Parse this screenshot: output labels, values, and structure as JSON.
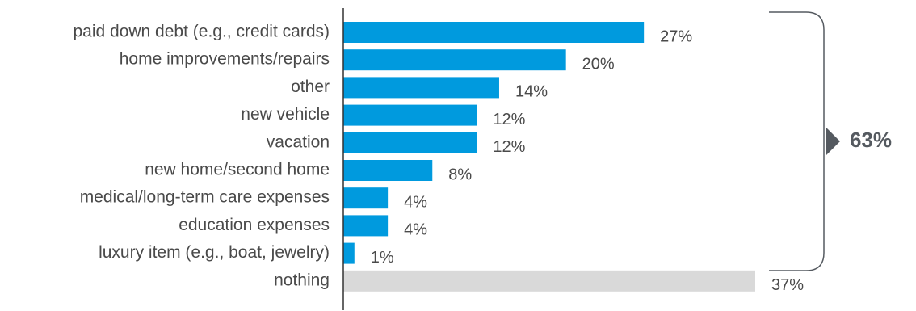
{
  "chart_data": {
    "type": "bar",
    "orientation": "horizontal",
    "categories": [
      "paid down debt (e.g., credit cards)",
      "home improvements/repairs",
      "other",
      "new vehicle",
      "vacation",
      "new home/second home",
      "medical/long-term care expenses",
      "education expenses",
      "luxury item (e.g., boat, jewelry)",
      "nothing"
    ],
    "values": [
      27,
      20,
      14,
      12,
      12,
      8,
      4,
      4,
      1,
      37
    ],
    "value_labels": [
      "27%",
      "20%",
      "14%",
      "12%",
      "12%",
      "8%",
      "4%",
      "4%",
      "1%",
      "37%"
    ],
    "colors": [
      "#009ade",
      "#009ade",
      "#009ade",
      "#009ade",
      "#009ade",
      "#009ade",
      "#009ade",
      "#009ade",
      "#009ade",
      "#d9d9d9"
    ],
    "xlim": [
      0,
      37
    ],
    "grid": false,
    "legend": "none",
    "bracket": {
      "label": "63%",
      "covers": "first 9 categories",
      "color": "#555a60"
    }
  }
}
